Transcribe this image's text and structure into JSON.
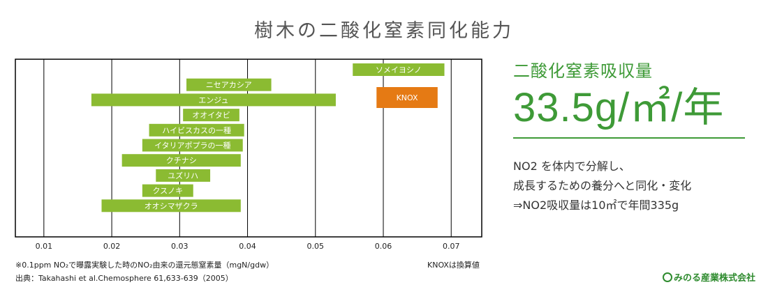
{
  "page_title": "樹木の二酸化窒素同化能力",
  "chart_data": {
    "type": "bar",
    "orientation": "horizontal-floating",
    "xlim": [
      0.0058,
      0.0745
    ],
    "xticks": [
      "0.01",
      "0.02",
      "0.03",
      "0.04",
      "0.05",
      "0.06",
      "0.07"
    ],
    "grid": true,
    "bars": [
      {
        "label": "ソメイヨシノ",
        "start": 0.0555,
        "end": 0.069,
        "color": "#8bbb32"
      },
      {
        "label": "KNOX",
        "start": 0.059,
        "end": 0.068,
        "color": "#e57a14"
      },
      {
        "label": "ニセアカシア",
        "start": 0.031,
        "end": 0.0435,
        "color": "#8bbb32"
      },
      {
        "label": "エンジュ",
        "start": 0.017,
        "end": 0.053,
        "color": "#8bbb32"
      },
      {
        "label": "オオイタビ",
        "start": 0.0305,
        "end": 0.0388,
        "color": "#8bbb32"
      },
      {
        "label": "ハイビスカスの一種",
        "start": 0.0255,
        "end": 0.0395,
        "color": "#8bbb32"
      },
      {
        "label": "イタリアポプラの一種",
        "start": 0.0245,
        "end": 0.0393,
        "color": "#8bbb32"
      },
      {
        "label": "クチナシ",
        "start": 0.0215,
        "end": 0.039,
        "color": "#8bbb32"
      },
      {
        "label": "ユズリハ",
        "start": 0.0265,
        "end": 0.0345,
        "color": "#8bbb32"
      },
      {
        "label": "クスノキ",
        "start": 0.0245,
        "end": 0.032,
        "color": "#8bbb32"
      },
      {
        "label": "オオシマザクラ",
        "start": 0.0185,
        "end": 0.039,
        "color": "#8bbb32"
      }
    ]
  },
  "notes": {
    "unit_note": "※0.1ppm NO₂で曝露実験した時のNO₂由来の還元態窒素量（mgN/gdw）",
    "source": "出典：Takahashi et al.Chemosphere 61,633-639（2005）",
    "knox_note": "KNOXは換算値"
  },
  "absorption": {
    "heading": "二酸化窒素吸収量",
    "value": "33.5g/㎡/年",
    "desc_line1": "NO2 を体内で分解し、",
    "desc_line2": "成長するための養分へと同化・変化",
    "desc_line3": "⇒NO2吸収量は10㎡で年間335g"
  },
  "company": "みのる産業株式会社",
  "colors": {
    "accent": "#3e9a37",
    "bar": "#8bbb32",
    "knox": "#e57a14"
  }
}
